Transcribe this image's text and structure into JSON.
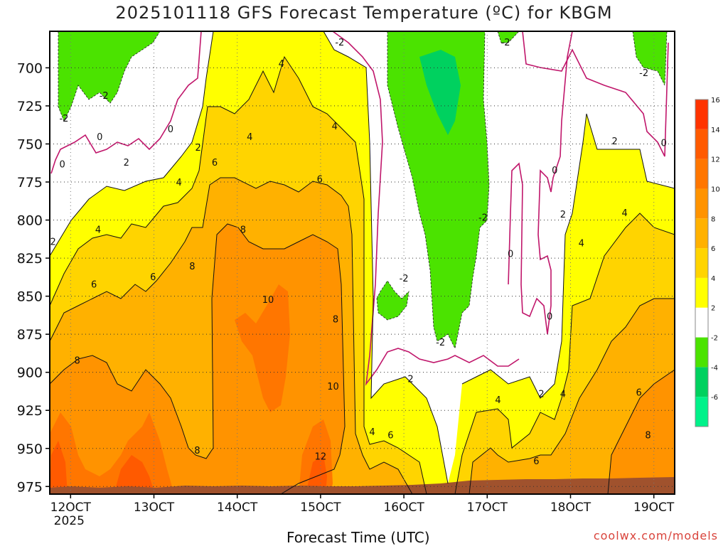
{
  "title": "2025101118 GFS Forecast Temperature (ºC) for KBGM",
  "xlabel": "Forecast Time (UTC)",
  "credit": "coolwx.com/models",
  "chart_data": {
    "type": "heatmap",
    "title": "2025101118 GFS Forecast Temperature (ºC) for KBGM",
    "xlabel": "Forecast Time (UTC)",
    "ylabel": "",
    "y_ticks": [
      700,
      725,
      750,
      775,
      800,
      825,
      850,
      875,
      900,
      925,
      950,
      975
    ],
    "ylim": [
      676,
      980
    ],
    "x_ticks": [
      {
        "label": "12OCT",
        "sub": "2025",
        "day": 12
      },
      {
        "label": "13OCT",
        "day": 13
      },
      {
        "label": "14OCT",
        "day": 14
      },
      {
        "label": "15OCT",
        "day": 15
      },
      {
        "label": "16OCT",
        "day": 16
      },
      {
        "label": "17OCT",
        "day": 17
      },
      {
        "label": "18OCT",
        "day": 18
      },
      {
        "label": "19OCT",
        "day": 19
      }
    ],
    "xlim": [
      11.75,
      19.25
    ],
    "colorbar": {
      "levels": [
        -6,
        -4,
        -2,
        2,
        4,
        6,
        8,
        10,
        12,
        14,
        16
      ],
      "colors": [
        "#00f28a",
        "#00d15f",
        "#4be300",
        "#ffffff",
        "#ffff00",
        "#ffd400",
        "#ffb100",
        "#ff9300",
        "#ff7600",
        "#ff5a00",
        "#ff3300"
      ]
    },
    "contour_labels": [
      {
        "text": "4",
        "day": 14.53,
        "p": 697
      },
      {
        "text": "-2",
        "day": 15.23,
        "p": 683
      },
      {
        "text": "-2",
        "day": 12.4,
        "p": 718
      },
      {
        "text": "-2",
        "day": 11.92,
        "p": 733
      },
      {
        "text": "0",
        "day": 12.35,
        "p": 745
      },
      {
        "text": "0",
        "day": 13.2,
        "p": 740
      },
      {
        "text": "-2",
        "day": 17.22,
        "p": 683
      },
      {
        "text": "-2",
        "day": 18.88,
        "p": 703
      },
      {
        "text": "0",
        "day": 19.12,
        "p": 749
      },
      {
        "text": "4",
        "day": 14.15,
        "p": 745
      },
      {
        "text": "4",
        "day": 15.17,
        "p": 738
      },
      {
        "text": "2",
        "day": 13.53,
        "p": 752
      },
      {
        "text": "0",
        "day": 11.9,
        "p": 763
      },
      {
        "text": "2",
        "day": 12.67,
        "p": 762
      },
      {
        "text": "6",
        "day": 13.73,
        "p": 762
      },
      {
        "text": "0",
        "day": 17.81,
        "p": 767
      },
      {
        "text": "2",
        "day": 18.53,
        "p": 748
      },
      {
        "text": "4",
        "day": 13.3,
        "p": 775
      },
      {
        "text": "6",
        "day": 14.99,
        "p": 773
      },
      {
        "text": "4",
        "day": 12.33,
        "p": 806
      },
      {
        "text": "8",
        "day": 14.07,
        "p": 806
      },
      {
        "text": "-2",
        "day": 16.95,
        "p": 798
      },
      {
        "text": "2",
        "day": 17.91,
        "p": 796
      },
      {
        "text": "4",
        "day": 18.65,
        "p": 795
      },
      {
        "text": "2",
        "day": 11.79,
        "p": 814
      },
      {
        "text": "4",
        "day": 18.13,
        "p": 815
      },
      {
        "text": "0",
        "day": 17.28,
        "p": 822
      },
      {
        "text": "8",
        "day": 13.46,
        "p": 830
      },
      {
        "text": "6",
        "day": 12.99,
        "p": 837
      },
      {
        "text": "6",
        "day": 12.28,
        "p": 842
      },
      {
        "text": "-2",
        "day": 16.0,
        "p": 838
      },
      {
        "text": "10",
        "day": 14.37,
        "p": 852
      },
      {
        "text": "0",
        "day": 17.75,
        "p": 863
      },
      {
        "text": "8",
        "day": 15.18,
        "p": 865
      },
      {
        "text": "-2",
        "day": 16.44,
        "p": 880
      },
      {
        "text": "8",
        "day": 12.08,
        "p": 892
      },
      {
        "text": "2",
        "day": 16.08,
        "p": 904
      },
      {
        "text": "10",
        "day": 15.15,
        "p": 909
      },
      {
        "text": "4",
        "day": 17.13,
        "p": 918
      },
      {
        "text": "2",
        "day": 17.65,
        "p": 914
      },
      {
        "text": "4",
        "day": 17.91,
        "p": 914
      },
      {
        "text": "6",
        "day": 18.82,
        "p": 913
      },
      {
        "text": "4",
        "day": 15.62,
        "p": 939
      },
      {
        "text": "6",
        "day": 15.84,
        "p": 941
      },
      {
        "text": "8",
        "day": 18.93,
        "p": 941
      },
      {
        "text": "8",
        "day": 13.52,
        "p": 951
      },
      {
        "text": "12",
        "day": 15.0,
        "p": 955
      },
      {
        "text": "6",
        "day": 17.59,
        "p": 958
      }
    ]
  }
}
